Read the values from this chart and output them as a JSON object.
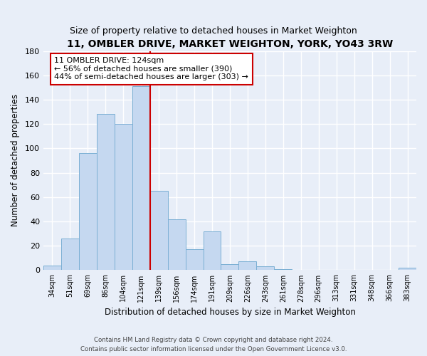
{
  "title_line1": "11, OMBLER DRIVE, MARKET WEIGHTON, YORK, YO43 3RW",
  "title_line2": "Size of property relative to detached houses in Market Weighton",
  "xlabel": "Distribution of detached houses by size in Market Weighton",
  "ylabel": "Number of detached properties",
  "bar_labels": [
    "34sqm",
    "51sqm",
    "69sqm",
    "86sqm",
    "104sqm",
    "121sqm",
    "139sqm",
    "156sqm",
    "174sqm",
    "191sqm",
    "209sqm",
    "226sqm",
    "243sqm",
    "261sqm",
    "278sqm",
    "296sqm",
    "313sqm",
    "331sqm",
    "348sqm",
    "366sqm",
    "383sqm"
  ],
  "bar_values": [
    4,
    26,
    96,
    128,
    120,
    151,
    65,
    42,
    17,
    32,
    5,
    7,
    3,
    1,
    0,
    0,
    0,
    0,
    0,
    0,
    2
  ],
  "bar_color": "#c5d8f0",
  "bar_edge_color": "#7bafd4",
  "vline_x_index": 5,
  "vline_color": "#cc0000",
  "ylim": [
    0,
    180
  ],
  "yticks": [
    0,
    20,
    40,
    60,
    80,
    100,
    120,
    140,
    160,
    180
  ],
  "annotation_title": "11 OMBLER DRIVE: 124sqm",
  "annotation_line1": "← 56% of detached houses are smaller (390)",
  "annotation_line2": "44% of semi-detached houses are larger (303) →",
  "annotation_box_color": "#ffffff",
  "annotation_box_edge": "#cc0000",
  "footer_line1": "Contains HM Land Registry data © Crown copyright and database right 2024.",
  "footer_line2": "Contains public sector information licensed under the Open Government Licence v3.0.",
  "background_color": "#e8eef8",
  "grid_color": "#ffffff"
}
